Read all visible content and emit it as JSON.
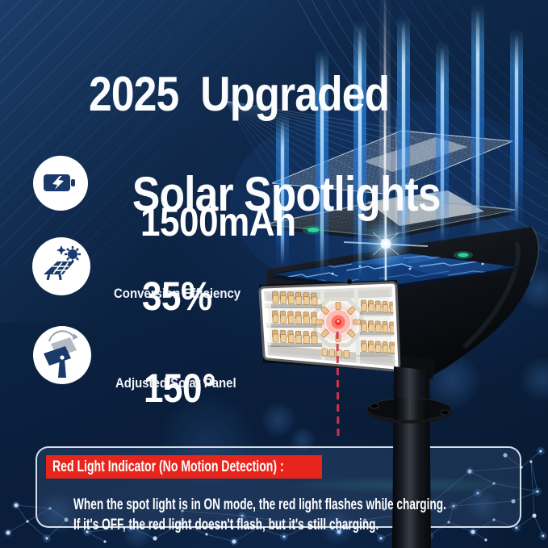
{
  "title": {
    "line1": "2025  Upgraded",
    "line2": "Solar Spotlights"
  },
  "features": [
    {
      "icon": "battery-charging-icon",
      "value": "1500mAh",
      "label": ""
    },
    {
      "icon": "solar-panel-efficiency-icon",
      "value": "35%",
      "label": "Conversion Efficiency"
    },
    {
      "icon": "adjustable-solar-panel-icon",
      "value": "150°",
      "label": "Adjusted Solar Panel"
    }
  ],
  "callout": {
    "heading": "Red Light Indicator (No Motion Detection) :",
    "body_line1": "When the spot light is in ON mode, the red light flashes while charging.",
    "body_line2": "If it's OFF, the red light doesn't flash, but it's still charging."
  },
  "colors": {
    "background_navy": "#0b2140",
    "icon_navy": "#1a3a6b",
    "alert_red": "#e8251c",
    "beam_blue": "#2f9ff6",
    "led_amber": "#f2cd96",
    "indicator_red": "#ff2e24",
    "text_white": "#ffffff"
  }
}
